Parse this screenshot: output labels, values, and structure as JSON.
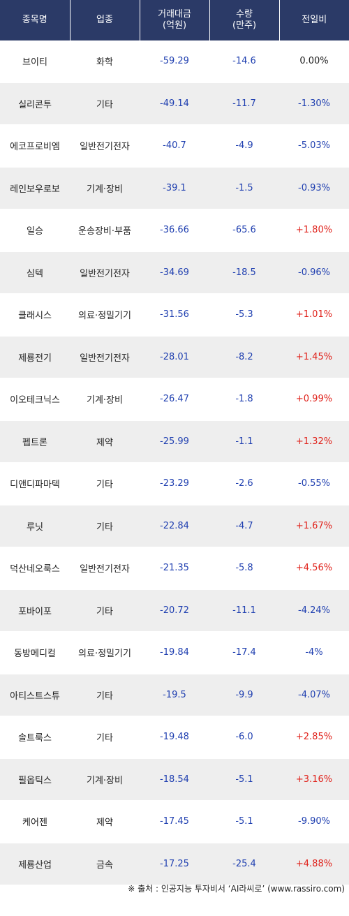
{
  "header": {
    "name": "종목명",
    "sector": "업종",
    "amount_line1": "거래대금",
    "amount_line2": "(억원)",
    "volume_line1": "수량",
    "volume_line2": "(만주)",
    "change": "전일비"
  },
  "rows": [
    {
      "name": "브이티",
      "sector": "화학",
      "amount": "-59.29",
      "volume": "-14.6",
      "change": "0.00%",
      "dir": "zero"
    },
    {
      "name": "실리콘투",
      "sector": "기타",
      "amount": "-49.14",
      "volume": "-11.7",
      "change": "-1.30%",
      "dir": "neg"
    },
    {
      "name": "에코프로비엠",
      "sector": "일반전기전자",
      "amount": "-40.7",
      "volume": "-4.9",
      "change": "-5.03%",
      "dir": "neg"
    },
    {
      "name": "레인보우로보",
      "sector": "기계·장비",
      "amount": "-39.1",
      "volume": "-1.5",
      "change": "-0.93%",
      "dir": "neg"
    },
    {
      "name": "일승",
      "sector": "운송장비·부품",
      "amount": "-36.66",
      "volume": "-65.6",
      "change": "+1.80%",
      "dir": "pos"
    },
    {
      "name": "심텍",
      "sector": "일반전기전자",
      "amount": "-34.69",
      "volume": "-18.5",
      "change": "-0.96%",
      "dir": "neg"
    },
    {
      "name": "클래시스",
      "sector": "의료·정밀기기",
      "amount": "-31.56",
      "volume": "-5.3",
      "change": "+1.01%",
      "dir": "pos"
    },
    {
      "name": "제룡전기",
      "sector": "일반전기전자",
      "amount": "-28.01",
      "volume": "-8.2",
      "change": "+1.45%",
      "dir": "pos"
    },
    {
      "name": "이오테크닉스",
      "sector": "기계·장비",
      "amount": "-26.47",
      "volume": "-1.8",
      "change": "+0.99%",
      "dir": "pos"
    },
    {
      "name": "펩트론",
      "sector": "제약",
      "amount": "-25.99",
      "volume": "-1.1",
      "change": "+1.32%",
      "dir": "pos"
    },
    {
      "name": "디앤디파마텍",
      "sector": "기타",
      "amount": "-23.29",
      "volume": "-2.6",
      "change": "-0.55%",
      "dir": "neg"
    },
    {
      "name": "루닛",
      "sector": "기타",
      "amount": "-22.84",
      "volume": "-4.7",
      "change": "+1.67%",
      "dir": "pos"
    },
    {
      "name": "덕산네오룩스",
      "sector": "일반전기전자",
      "amount": "-21.35",
      "volume": "-5.8",
      "change": "+4.56%",
      "dir": "pos"
    },
    {
      "name": "포바이포",
      "sector": "기타",
      "amount": "-20.72",
      "volume": "-11.1",
      "change": "-4.24%",
      "dir": "neg"
    },
    {
      "name": "동방메디컬",
      "sector": "의료·정밀기기",
      "amount": "-19.84",
      "volume": "-17.4",
      "change": "-4%",
      "dir": "neg"
    },
    {
      "name": "아티스트스튜",
      "sector": "기타",
      "amount": "-19.5",
      "volume": "-9.9",
      "change": "-4.07%",
      "dir": "neg"
    },
    {
      "name": "솔트룩스",
      "sector": "기타",
      "amount": "-19.48",
      "volume": "-6.0",
      "change": "+2.85%",
      "dir": "pos"
    },
    {
      "name": "필옵틱스",
      "sector": "기계·장비",
      "amount": "-18.54",
      "volume": "-5.1",
      "change": "+3.16%",
      "dir": "pos"
    },
    {
      "name": "케어젠",
      "sector": "제약",
      "amount": "-17.45",
      "volume": "-5.1",
      "change": "-9.90%",
      "dir": "neg"
    },
    {
      "name": "제룡산업",
      "sector": "금속",
      "amount": "-17.25",
      "volume": "-25.4",
      "change": "+4.88%",
      "dir": "pos"
    }
  ],
  "colors": {
    "header_bg": "#2b3a67",
    "row_alt_bg": "#eeeeee",
    "negative": "#1f3fb0",
    "positive": "#e0221b"
  },
  "footer": "※ 출처 : 인공지능 투자비서 ‘AI라씨로’ (www.rassiro.com)"
}
